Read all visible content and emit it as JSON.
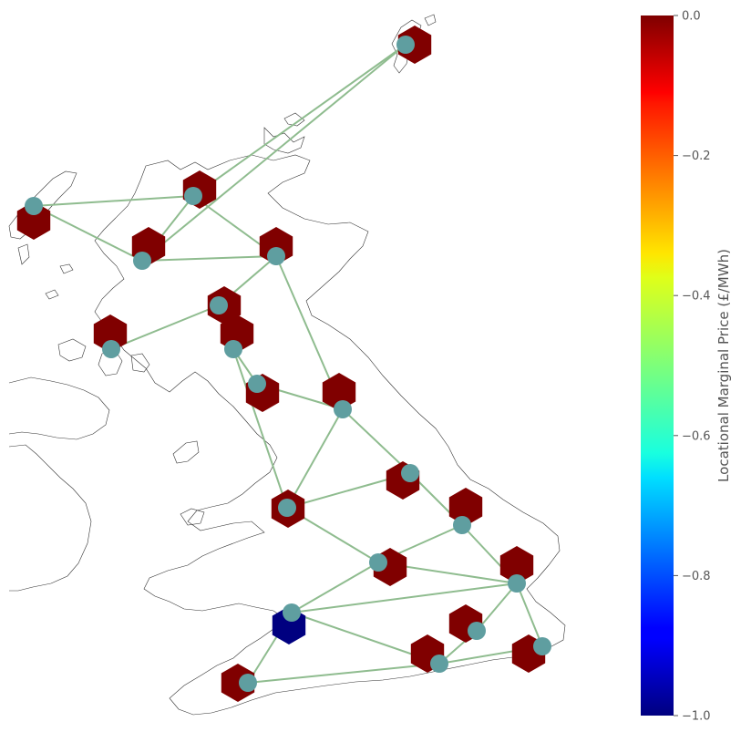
{
  "chart_data": {
    "type": "network-map",
    "colorbar": {
      "label": "Locational Marginal Price (£/MWh)",
      "range": [
        -1.0,
        0.0
      ],
      "colormap": "jet",
      "ticks": [
        0.0,
        -0.2,
        -0.4,
        -0.6,
        -0.8,
        -1.0
      ],
      "tick_labels": [
        "0.0",
        "−0.2",
        "−0.4",
        "−0.6",
        "−0.8",
        "−1.0"
      ]
    },
    "bus_color": "#5f9ea0",
    "line_color": "#8fbc8f",
    "nodes": [
      {
        "id": "shetland",
        "lmp": 0.0
      },
      {
        "id": "skye",
        "lmp": 0.0
      },
      {
        "id": "highland",
        "lmp": 0.0
      },
      {
        "id": "moray",
        "lmp": 0.0
      },
      {
        "id": "aberdeen",
        "lmp": 0.0
      },
      {
        "id": "fife",
        "lmp": 0.0
      },
      {
        "id": "islay",
        "lmp": 0.0
      },
      {
        "id": "glasgow",
        "lmp": 0.0
      },
      {
        "id": "borders",
        "lmp": 0.0
      },
      {
        "id": "northumberland",
        "lmp": 0.0
      },
      {
        "id": "lancashire",
        "lmp": 0.0
      },
      {
        "id": "yorkshire",
        "lmp": 0.0
      },
      {
        "id": "humber",
        "lmp": 0.0
      },
      {
        "id": "midlands",
        "lmp": 0.0
      },
      {
        "id": "east-anglia",
        "lmp": 0.0
      },
      {
        "id": "south-wales",
        "lmp": -1.0
      },
      {
        "id": "london",
        "lmp": 0.0
      },
      {
        "id": "kent",
        "lmp": 0.0
      },
      {
        "id": "south-coast",
        "lmp": 0.0
      },
      {
        "id": "cornwall",
        "lmp": 0.0
      }
    ],
    "lines": [
      [
        "shetland",
        "highland"
      ],
      [
        "shetland",
        "moray"
      ],
      [
        "skye",
        "highland"
      ],
      [
        "skye",
        "moray"
      ],
      [
        "moray",
        "highland"
      ],
      [
        "moray",
        "aberdeen"
      ],
      [
        "highland",
        "aberdeen"
      ],
      [
        "aberdeen",
        "fife"
      ],
      [
        "aberdeen",
        "northumberland"
      ],
      [
        "fife",
        "islay"
      ],
      [
        "fife",
        "glasgow"
      ],
      [
        "glasgow",
        "borders"
      ],
      [
        "glasgow",
        "lancashire"
      ],
      [
        "borders",
        "northumberland"
      ],
      [
        "northumberland",
        "yorkshire"
      ],
      [
        "northumberland",
        "lancashire"
      ],
      [
        "lancashire",
        "yorkshire"
      ],
      [
        "lancashire",
        "midlands"
      ],
      [
        "yorkshire",
        "humber"
      ],
      [
        "humber",
        "midlands"
      ],
      [
        "humber",
        "east-anglia"
      ],
      [
        "midlands",
        "east-anglia"
      ],
      [
        "midlands",
        "south-wales"
      ],
      [
        "east-anglia",
        "south-wales"
      ],
      [
        "east-anglia",
        "london"
      ],
      [
        "east-anglia",
        "kent"
      ],
      [
        "south-wales",
        "south-coast"
      ],
      [
        "south-wales",
        "cornwall"
      ],
      [
        "london",
        "south-coast"
      ],
      [
        "kent",
        "south-coast"
      ],
      [
        "cornwall",
        "south-coast"
      ]
    ]
  }
}
